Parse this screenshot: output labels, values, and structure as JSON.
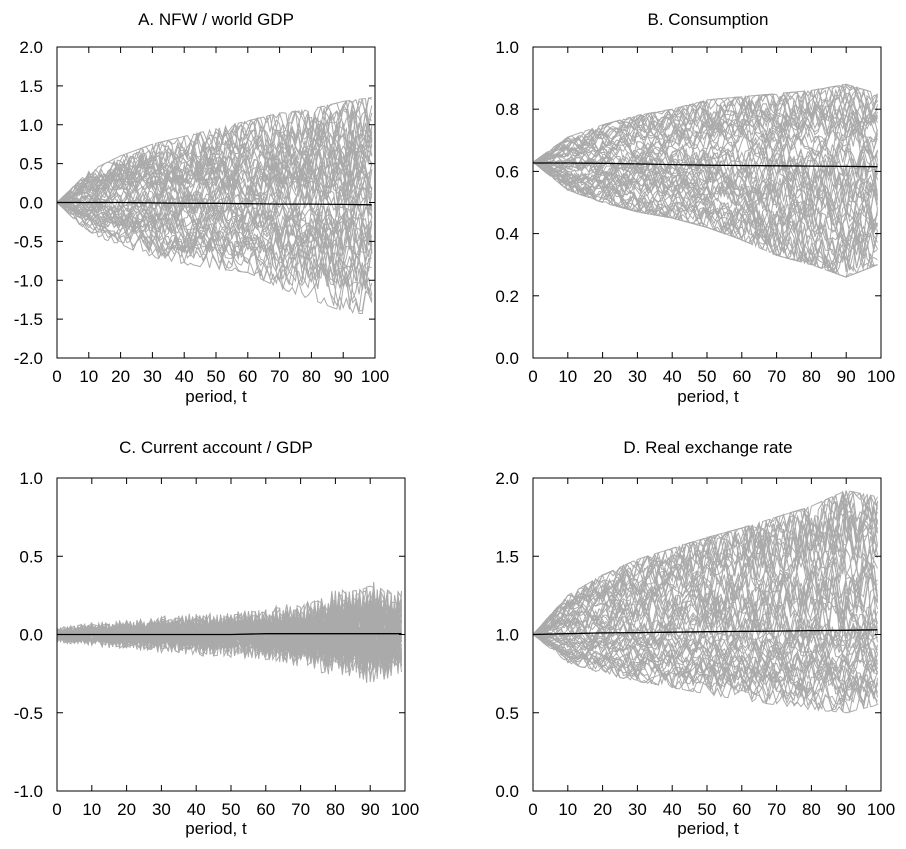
{
  "chart_data": [
    {
      "type": "line",
      "title": "A. NFW / world GDP",
      "xlabel": "period, t",
      "ylabel": "",
      "xlim": [
        0,
        100
      ],
      "ylim": [
        -2.0,
        2.0
      ],
      "x_ticks": [
        "0",
        "10",
        "20",
        "30",
        "40",
        "50",
        "60",
        "70",
        "80",
        "90",
        "100"
      ],
      "y_ticks": [
        "-2.0",
        "-1.5",
        "-1.0",
        "-0.5",
        "0.0",
        "0.5",
        "1.0",
        "1.5",
        "2.0"
      ],
      "grid": false,
      "series": [
        {
          "role": "simulated paths (many)",
          "color": "#aaaaaa",
          "x": [
            0,
            10,
            20,
            30,
            40,
            50,
            60,
            70,
            80,
            90,
            99
          ],
          "upper_envelope": [
            0.0,
            0.4,
            0.6,
            0.75,
            0.85,
            0.95,
            1.05,
            1.15,
            1.2,
            1.3,
            1.35
          ],
          "lower_envelope": [
            0.0,
            -0.4,
            -0.55,
            -0.7,
            -0.8,
            -0.85,
            -0.9,
            -1.1,
            -1.25,
            -1.4,
            -1.45
          ]
        },
        {
          "role": "mean path",
          "color": "#000000",
          "x": [
            0,
            10,
            20,
            30,
            40,
            50,
            60,
            70,
            80,
            90,
            99
          ],
          "values": [
            0.0,
            0.0,
            0.0,
            -0.005,
            -0.01,
            -0.01,
            -0.015,
            -0.02,
            -0.02,
            -0.025,
            -0.03
          ]
        }
      ]
    },
    {
      "type": "line",
      "title": "B. Consumption",
      "xlabel": "period, t",
      "ylabel": "",
      "xlim": [
        0,
        100
      ],
      "ylim": [
        0.0,
        1.0
      ],
      "x_ticks": [
        "0",
        "10",
        "20",
        "30",
        "40",
        "50",
        "60",
        "70",
        "80",
        "90",
        "100"
      ],
      "y_ticks": [
        "0.0",
        "0.2",
        "0.4",
        "0.6",
        "0.8",
        "1.0"
      ],
      "grid": false,
      "series": [
        {
          "role": "simulated paths (many)",
          "color": "#aaaaaa",
          "x": [
            0,
            10,
            20,
            30,
            40,
            50,
            60,
            70,
            80,
            90,
            99
          ],
          "upper_envelope": [
            0.63,
            0.71,
            0.75,
            0.78,
            0.8,
            0.83,
            0.84,
            0.85,
            0.86,
            0.88,
            0.85
          ],
          "lower_envelope": [
            0.63,
            0.54,
            0.5,
            0.47,
            0.45,
            0.42,
            0.38,
            0.33,
            0.3,
            0.26,
            0.3
          ]
        },
        {
          "role": "mean path",
          "color": "#000000",
          "x": [
            0,
            10,
            20,
            30,
            40,
            50,
            60,
            70,
            80,
            90,
            99
          ],
          "values": [
            0.627,
            0.627,
            0.626,
            0.624,
            0.622,
            0.62,
            0.619,
            0.618,
            0.617,
            0.616,
            0.615
          ]
        }
      ]
    },
    {
      "type": "line",
      "title": "C. Current account / GDP",
      "xlabel": "period, t",
      "ylabel": "",
      "xlim": [
        0,
        100
      ],
      "ylim": [
        -1.0,
        1.0
      ],
      "x_ticks": [
        "0",
        "10",
        "20",
        "30",
        "40",
        "50",
        "60",
        "70",
        "80",
        "90",
        "100"
      ],
      "y_ticks": [
        "-1.0",
        "-0.5",
        "0.0",
        "0.5",
        "1.0"
      ],
      "grid": false,
      "series": [
        {
          "role": "simulated paths (many)",
          "color": "#aaaaaa",
          "x": [
            0,
            10,
            20,
            30,
            40,
            50,
            60,
            70,
            80,
            90,
            99
          ],
          "upper_envelope": [
            0.05,
            0.08,
            0.1,
            0.12,
            0.14,
            0.15,
            0.18,
            0.22,
            0.28,
            0.35,
            0.3
          ],
          "lower_envelope": [
            -0.05,
            -0.07,
            -0.08,
            -0.1,
            -0.11,
            -0.13,
            -0.15,
            -0.18,
            -0.3,
            -0.28,
            -0.28
          ]
        },
        {
          "role": "mean path",
          "color": "#000000",
          "x": [
            0,
            10,
            20,
            30,
            40,
            50,
            60,
            70,
            80,
            90,
            99
          ],
          "values": [
            0.0,
            0.0,
            0.0,
            0.0,
            0.0,
            0.0,
            0.005,
            0.005,
            0.005,
            0.005,
            0.005
          ]
        }
      ]
    },
    {
      "type": "line",
      "title": "D. Real exchange rate",
      "xlabel": "period, t",
      "ylabel": "",
      "xlim": [
        0,
        100
      ],
      "ylim": [
        0.0,
        2.0
      ],
      "x_ticks": [
        "0",
        "10",
        "20",
        "30",
        "40",
        "50",
        "60",
        "70",
        "80",
        "90",
        "100"
      ],
      "y_ticks": [
        "0.0",
        "0.5",
        "1.0",
        "1.5",
        "2.0"
      ],
      "grid": false,
      "series": [
        {
          "role": "simulated paths (many)",
          "color": "#aaaaaa",
          "x": [
            0,
            10,
            20,
            30,
            40,
            50,
            60,
            70,
            80,
            90,
            99
          ],
          "upper_envelope": [
            1.0,
            1.25,
            1.38,
            1.48,
            1.55,
            1.62,
            1.68,
            1.75,
            1.82,
            1.92,
            1.88
          ],
          "lower_envelope": [
            1.0,
            0.82,
            0.75,
            0.7,
            0.66,
            0.62,
            0.58,
            0.55,
            0.52,
            0.5,
            0.55
          ]
        },
        {
          "role": "mean path",
          "color": "#000000",
          "x": [
            0,
            10,
            20,
            30,
            40,
            50,
            60,
            70,
            80,
            90,
            99
          ],
          "values": [
            1.0,
            1.005,
            1.01,
            1.012,
            1.015,
            1.018,
            1.02,
            1.022,
            1.025,
            1.027,
            1.03
          ]
        }
      ]
    }
  ]
}
